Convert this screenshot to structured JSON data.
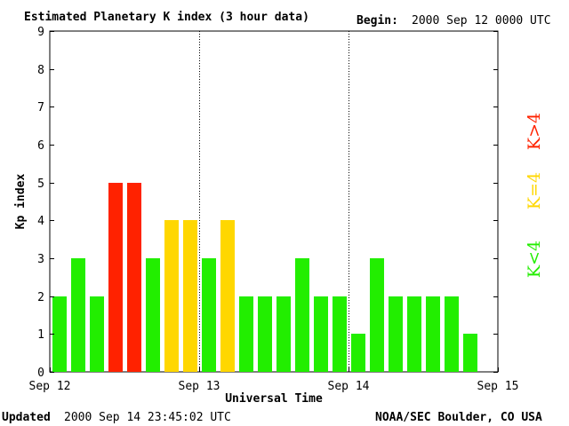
{
  "header": {
    "title": "Estimated Planetary K index (3 hour data)",
    "begin_label": "Begin:",
    "begin_value": "2000 Sep 12 0000 UTC"
  },
  "footer": {
    "updated_label": "Updated",
    "updated_value": "2000 Sep 14 23:45:02 UTC",
    "source": "NOAA/SEC Boulder, CO USA"
  },
  "legend": [
    {
      "label": "K>4",
      "color": "#ff2200"
    },
    {
      "label": "K=4",
      "color": "#ffd700"
    },
    {
      "label": "K<4",
      "color": "#22ee00"
    }
  ],
  "chart_data": {
    "type": "bar",
    "title": "Estimated Planetary K index (3 hour data)",
    "xlabel": "Universal Time",
    "ylabel": "Kp index",
    "ylim": [
      0,
      9
    ],
    "yticks": [
      0,
      1,
      2,
      3,
      4,
      5,
      6,
      7,
      8,
      9
    ],
    "xlim": [
      "2000-09-12 00:00",
      "2000-09-15 00:00"
    ],
    "x_tick_labels": [
      "Sep 12",
      "Sep 13",
      "Sep 14",
      "Sep 15"
    ],
    "day_separators": [
      "Sep 13",
      "Sep 14"
    ],
    "interval_hours": 3,
    "x": [
      "2000-09-12 00:00",
      "2000-09-12 03:00",
      "2000-09-12 06:00",
      "2000-09-12 09:00",
      "2000-09-12 12:00",
      "2000-09-12 15:00",
      "2000-09-12 18:00",
      "2000-09-12 21:00",
      "2000-09-13 00:00",
      "2000-09-13 03:00",
      "2000-09-13 06:00",
      "2000-09-13 09:00",
      "2000-09-13 12:00",
      "2000-09-13 15:00",
      "2000-09-13 18:00",
      "2000-09-13 21:00",
      "2000-09-14 00:00",
      "2000-09-14 03:00",
      "2000-09-14 06:00",
      "2000-09-14 09:00",
      "2000-09-14 12:00",
      "2000-09-14 15:00",
      "2000-09-14 18:00"
    ],
    "values": [
      2,
      3,
      2,
      5,
      5,
      3,
      4,
      4,
      3,
      4,
      2,
      2,
      2,
      3,
      2,
      2,
      1,
      3,
      2,
      2,
      2,
      2,
      1
    ],
    "color_rule": [
      {
        "condition": "K>4",
        "color": "#ff2200"
      },
      {
        "condition": "K=4",
        "color": "#ffd700"
      },
      {
        "condition": "K<4",
        "color": "#22ee00"
      }
    ]
  }
}
